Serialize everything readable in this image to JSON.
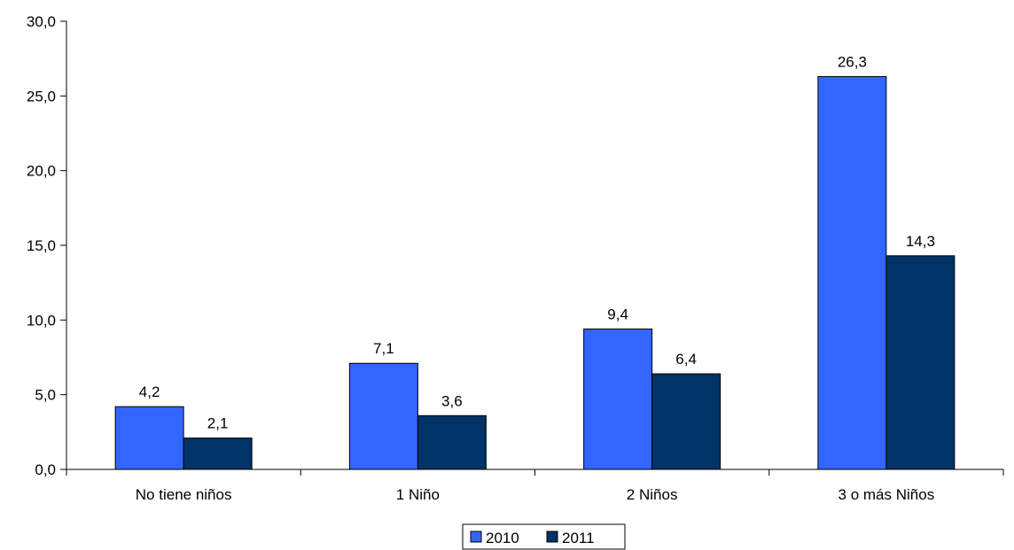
{
  "chart_data": {
    "type": "bar",
    "categories": [
      "No tiene niños",
      "1 Niño",
      "2 Niños",
      "3 o más Niños"
    ],
    "series": [
      {
        "name": "2010",
        "values": [
          4.2,
          7.1,
          9.4,
          26.3
        ],
        "labels": [
          "4,2",
          "7,1",
          "9,4",
          "26,3"
        ],
        "color": "#3366ff"
      },
      {
        "name": "2011",
        "values": [
          2.1,
          3.6,
          6.4,
          14.3
        ],
        "labels": [
          "2,1",
          "3,6",
          "6,4",
          "14,3"
        ],
        "color": "#003366"
      }
    ],
    "ylim": [
      0,
      30
    ],
    "yticks": [
      0,
      5,
      10,
      15,
      20,
      25,
      30
    ],
    "ytick_labels": [
      "0,0",
      "5,0",
      "10,0",
      "15,0",
      "20,0",
      "25,0",
      "30,0"
    ],
    "title": "",
    "xlabel": "",
    "ylabel": "",
    "grid": false,
    "legend_position": "bottom-center"
  }
}
